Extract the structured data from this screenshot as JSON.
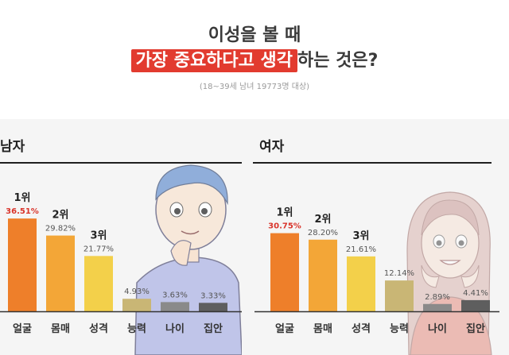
{
  "header": {
    "title_line1": "이성을 볼 때",
    "title_line2_highlight": "가장 중요하다고 생각",
    "title_line2_rest": "하는 것은?",
    "subtitle": "(18~39세 남녀 19773명 대상)"
  },
  "colors": {
    "highlight": "#e23b2f",
    "rank_red": "#d9342b",
    "bar_palette": [
      "#ee7f2a",
      "#f3a637",
      "#f3d04a",
      "#c9b675",
      "#8a8a8a",
      "#5e5e5e"
    ]
  },
  "chart_data": [
    {
      "type": "bar",
      "title": "남자",
      "categories": [
        "얼굴",
        "몸매",
        "성격",
        "능력",
        "나이",
        "집안"
      ],
      "values": [
        36.51,
        29.82,
        21.77,
        4.93,
        3.63,
        3.33
      ],
      "value_labels": [
        "36.51%",
        "29.82%",
        "21.77%",
        "4.93%",
        "3.63%",
        "3.33%"
      ],
      "ranks": [
        "1위",
        "2위",
        "3위",
        "",
        "",
        ""
      ],
      "ylim": [
        0,
        40
      ],
      "grid": false,
      "illustration": "man-thinking-icon"
    },
    {
      "type": "bar",
      "title": "여자",
      "categories": [
        "얼굴",
        "몸매",
        "성격",
        "능력",
        "나이",
        "집안"
      ],
      "values": [
        30.75,
        28.2,
        21.61,
        12.14,
        2.89,
        4.41
      ],
      "value_labels": [
        "30.75%",
        "28.20%",
        "21.61%",
        "12.14%",
        "2.89%",
        "4.41%"
      ],
      "ranks": [
        "1위",
        "2위",
        "3위",
        "",
        "",
        ""
      ],
      "ylim": [
        0,
        40
      ],
      "grid": false,
      "illustration": "woman-smiling-icon"
    }
  ]
}
